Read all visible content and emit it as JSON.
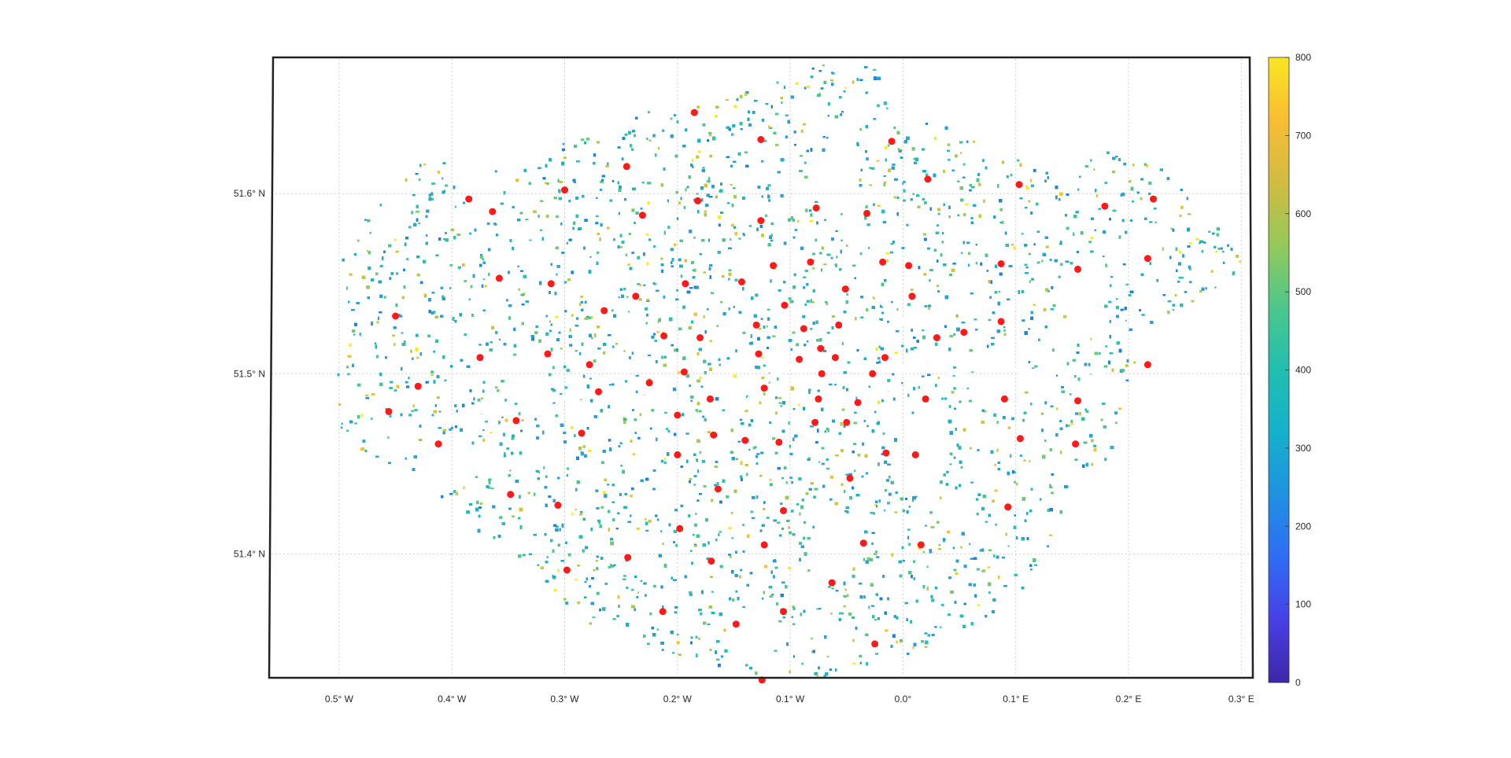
{
  "map": {
    "type": "scatter-map",
    "region_bounds": {
      "lon": [
        -0.56,
        0.32
      ],
      "lat": [
        51.28,
        51.7
      ]
    },
    "lon_ticks": [
      {
        "value": -0.5,
        "label": "0.5° W"
      },
      {
        "value": -0.4,
        "label": "0.4° W"
      },
      {
        "value": -0.3,
        "label": "0.3° W"
      },
      {
        "value": -0.2,
        "label": "0.2° W"
      },
      {
        "value": -0.1,
        "label": "0.1° W"
      },
      {
        "value": 0.0,
        "label": "0.0°"
      },
      {
        "value": 0.1,
        "label": "0.1° E"
      },
      {
        "value": 0.2,
        "label": "0.2° E"
      },
      {
        "value": 0.3,
        "label": "0.3° E"
      }
    ],
    "lat_ticks": [
      {
        "value": 51.6,
        "label": "51.6° N"
      },
      {
        "value": 51.5,
        "label": "51.5° N"
      },
      {
        "value": 51.4,
        "label": "51.4° N"
      }
    ],
    "grid": true,
    "point_colors": [
      "#3a5bd9",
      "#1f84d8",
      "#2aa0d0",
      "#21b0c4",
      "#2fbfae",
      "#4dc58f",
      "#6fca73",
      "#9ccb56",
      "#cbc63d",
      "#f0c52f",
      "#fde725"
    ],
    "marker_color": "#ff1a1a",
    "river_color": "#ffffff",
    "markers": [
      {
        "lon": -0.185,
        "lat": 51.645
      },
      {
        "lon": -0.126,
        "lat": 51.63
      },
      {
        "lon": -0.01,
        "lat": 51.629
      },
      {
        "lon": -0.245,
        "lat": 51.615
      },
      {
        "lon": 0.022,
        "lat": 51.608
      },
      {
        "lon": 0.103,
        "lat": 51.605
      },
      {
        "lon": -0.3,
        "lat": 51.602
      },
      {
        "lon": -0.385,
        "lat": 51.597
      },
      {
        "lon": -0.182,
        "lat": 51.596
      },
      {
        "lon": 0.222,
        "lat": 51.597
      },
      {
        "lon": 0.179,
        "lat": 51.593
      },
      {
        "lon": -0.077,
        "lat": 51.592
      },
      {
        "lon": -0.364,
        "lat": 51.59
      },
      {
        "lon": -0.231,
        "lat": 51.588
      },
      {
        "lon": -0.032,
        "lat": 51.589
      },
      {
        "lon": -0.126,
        "lat": 51.585
      },
      {
        "lon": -0.082,
        "lat": 51.562
      },
      {
        "lon": -0.018,
        "lat": 51.562
      },
      {
        "lon": 0.217,
        "lat": 51.564
      },
      {
        "lon": -0.115,
        "lat": 51.56
      },
      {
        "lon": 0.005,
        "lat": 51.56
      },
      {
        "lon": 0.087,
        "lat": 51.561
      },
      {
        "lon": 0.155,
        "lat": 51.558
      },
      {
        "lon": -0.358,
        "lat": 51.553
      },
      {
        "lon": -0.143,
        "lat": 51.551
      },
      {
        "lon": -0.312,
        "lat": 51.55
      },
      {
        "lon": -0.193,
        "lat": 51.55
      },
      {
        "lon": -0.051,
        "lat": 51.547
      },
      {
        "lon": -0.237,
        "lat": 51.543
      },
      {
        "lon": 0.008,
        "lat": 51.543
      },
      {
        "lon": -0.105,
        "lat": 51.538
      },
      {
        "lon": -0.265,
        "lat": 51.535
      },
      {
        "lon": -0.45,
        "lat": 51.532
      },
      {
        "lon": 0.087,
        "lat": 51.529
      },
      {
        "lon": -0.13,
        "lat": 51.527
      },
      {
        "lon": -0.057,
        "lat": 51.527
      },
      {
        "lon": -0.088,
        "lat": 51.525
      },
      {
        "lon": 0.054,
        "lat": 51.523
      },
      {
        "lon": -0.212,
        "lat": 51.521
      },
      {
        "lon": -0.18,
        "lat": 51.52
      },
      {
        "lon": 0.03,
        "lat": 51.52
      },
      {
        "lon": -0.073,
        "lat": 51.514
      },
      {
        "lon": -0.315,
        "lat": 51.511
      },
      {
        "lon": -0.128,
        "lat": 51.511
      },
      {
        "lon": -0.06,
        "lat": 51.509
      },
      {
        "lon": -0.016,
        "lat": 51.509
      },
      {
        "lon": -0.375,
        "lat": 51.509
      },
      {
        "lon": -0.092,
        "lat": 51.508
      },
      {
        "lon": -0.278,
        "lat": 51.505
      },
      {
        "lon": 0.217,
        "lat": 51.505
      },
      {
        "lon": -0.194,
        "lat": 51.501
      },
      {
        "lon": -0.072,
        "lat": 51.5
      },
      {
        "lon": -0.027,
        "lat": 51.5
      },
      {
        "lon": -0.225,
        "lat": 51.495
      },
      {
        "lon": -0.43,
        "lat": 51.493
      },
      {
        "lon": -0.123,
        "lat": 51.492
      },
      {
        "lon": -0.27,
        "lat": 51.49
      },
      {
        "lon": -0.075,
        "lat": 51.486
      },
      {
        "lon": -0.171,
        "lat": 51.486
      },
      {
        "lon": 0.02,
        "lat": 51.486
      },
      {
        "lon": 0.09,
        "lat": 51.486
      },
      {
        "lon": 0.155,
        "lat": 51.485
      },
      {
        "lon": -0.04,
        "lat": 51.484
      },
      {
        "lon": -0.456,
        "lat": 51.479
      },
      {
        "lon": -0.2,
        "lat": 51.477
      },
      {
        "lon": -0.343,
        "lat": 51.474
      },
      {
        "lon": -0.078,
        "lat": 51.473
      },
      {
        "lon": -0.05,
        "lat": 51.473
      },
      {
        "lon": -0.285,
        "lat": 51.467
      },
      {
        "lon": -0.168,
        "lat": 51.466
      },
      {
        "lon": 0.104,
        "lat": 51.464
      },
      {
        "lon": -0.14,
        "lat": 51.463
      },
      {
        "lon": -0.11,
        "lat": 51.462
      },
      {
        "lon": -0.412,
        "lat": 51.461
      },
      {
        "lon": 0.153,
        "lat": 51.461
      },
      {
        "lon": -0.015,
        "lat": 51.456
      },
      {
        "lon": 0.011,
        "lat": 51.455
      },
      {
        "lon": -0.2,
        "lat": 51.455
      },
      {
        "lon": -0.047,
        "lat": 51.442
      },
      {
        "lon": -0.164,
        "lat": 51.436
      },
      {
        "lon": -0.348,
        "lat": 51.433
      },
      {
        "lon": -0.306,
        "lat": 51.427
      },
      {
        "lon": 0.093,
        "lat": 51.426
      },
      {
        "lon": -0.106,
        "lat": 51.424
      },
      {
        "lon": -0.198,
        "lat": 51.414
      },
      {
        "lon": -0.123,
        "lat": 51.405
      },
      {
        "lon": -0.035,
        "lat": 51.406
      },
      {
        "lon": 0.016,
        "lat": 51.405
      },
      {
        "lon": -0.244,
        "lat": 51.398
      },
      {
        "lon": -0.17,
        "lat": 51.396
      },
      {
        "lon": -0.298,
        "lat": 51.391
      },
      {
        "lon": -0.063,
        "lat": 51.384
      },
      {
        "lon": -0.213,
        "lat": 51.368
      },
      {
        "lon": -0.106,
        "lat": 51.368
      },
      {
        "lon": -0.148,
        "lat": 51.361
      },
      {
        "lon": -0.025,
        "lat": 51.35
      },
      {
        "lon": -0.125,
        "lat": 51.33
      }
    ]
  },
  "colorbar": {
    "min": 0,
    "max": 800,
    "ticks": [
      "0",
      "100",
      "200",
      "300",
      "400",
      "500",
      "600",
      "700",
      "800"
    ],
    "colors": [
      "#3e26a8",
      "#4840e4",
      "#2f6cf4",
      "#1f92e2",
      "#15b0cc",
      "#21beb0",
      "#4cc78c",
      "#95c959",
      "#d1bb42",
      "#f9bd33",
      "#f9e621"
    ]
  }
}
